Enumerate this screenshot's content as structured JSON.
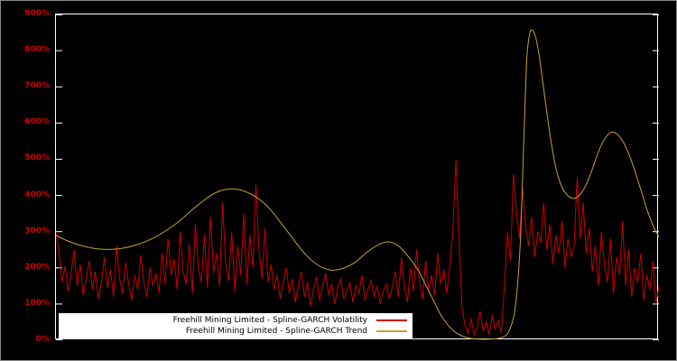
{
  "page": {
    "background": "#000000",
    "outer_border_color": "#8a8a8a"
  },
  "axis": {
    "tick_label_color": "#cc0000",
    "plot_border_color": "#ffffff",
    "tick_mark_color": "#ffffff"
  },
  "chart_data": {
    "type": "line",
    "title": "",
    "xlabel": "",
    "ylabel": "",
    "ylim": [
      0,
      900
    ],
    "y_tick_step": 100,
    "y_ticks": [
      "0%",
      "100%",
      "200%",
      "300%",
      "400%",
      "500%",
      "600%",
      "700%",
      "800%",
      "900%"
    ],
    "grid": false,
    "legend_position": "bottom-left-inside",
    "x_range": [
      0,
      1
    ],
    "series": [
      {
        "name": "Freehill Mining Limited - Spline-GARCH Volatility",
        "color": "#cc0000",
        "line_style": "jagged",
        "values": [
          300,
          240,
          160,
          205,
          135,
          185,
          250,
          150,
          210,
          125,
          170,
          220,
          140,
          190,
          115,
          160,
          230,
          145,
          195,
          120,
          260,
          170,
          130,
          215,
          155,
          110,
          180,
          140,
          235,
          160,
          120,
          200,
          150,
          185,
          130,
          240,
          155,
          280,
          180,
          225,
          140,
          300,
          190,
          155,
          265,
          130,
          320,
          200,
          160,
          290,
          145,
          340,
          185,
          240,
          150,
          380,
          210,
          165,
          300,
          135,
          260,
          180,
          350,
          155,
          290,
          200,
          430,
          250,
          170,
          310,
          160,
          210,
          140,
          180,
          115,
          160,
          200,
          130,
          170,
          105,
          150,
          190,
          120,
          160,
          95,
          140,
          175,
          110,
          150,
          185,
          125,
          155,
          100,
          145,
          170,
          115,
          135,
          160,
          105,
          150,
          130,
          180,
          110,
          140,
          165,
          120,
          150,
          100,
          135,
          155,
          115,
          145,
          190,
          120,
          230,
          150,
          105,
          200,
          135,
          250,
          160,
          115,
          220,
          140,
          180,
          125,
          240,
          155,
          195,
          130,
          210,
          300,
          500,
          280,
          90,
          40,
          20,
          60,
          15,
          35,
          80,
          25,
          50,
          15,
          70,
          30,
          55,
          20,
          150,
          300,
          220,
          460,
          350,
          280,
          420,
          310,
          260,
          340,
          230,
          300,
          270,
          380,
          250,
          320,
          210,
          290,
          240,
          330,
          200,
          280,
          230,
          260,
          450,
          280,
          380,
          240,
          310,
          190,
          260,
          150,
          300,
          210,
          160,
          280,
          130,
          230,
          180,
          330,
          150,
          250,
          120,
          200,
          160,
          240,
          110,
          180,
          140,
          220,
          100,
          150
        ]
      },
      {
        "name": "Freehill Mining Limited - Spline-GARCH Trend",
        "color": "#c8a032",
        "line_style": "smooth",
        "points": [
          [
            0.0,
            290
          ],
          [
            0.02,
            274
          ],
          [
            0.05,
            258
          ],
          [
            0.08,
            251
          ],
          [
            0.11,
            254
          ],
          [
            0.14,
            267
          ],
          [
            0.17,
            290
          ],
          [
            0.2,
            323
          ],
          [
            0.23,
            366
          ],
          [
            0.255,
            398
          ],
          [
            0.275,
            414
          ],
          [
            0.295,
            418
          ],
          [
            0.315,
            410
          ],
          [
            0.335,
            392
          ],
          [
            0.355,
            362
          ],
          [
            0.375,
            320
          ],
          [
            0.395,
            276
          ],
          [
            0.415,
            235
          ],
          [
            0.435,
            207
          ],
          [
            0.455,
            194
          ],
          [
            0.475,
            198
          ],
          [
            0.495,
            214
          ],
          [
            0.515,
            242
          ],
          [
            0.535,
            264
          ],
          [
            0.55,
            272
          ],
          [
            0.565,
            264
          ],
          [
            0.58,
            240
          ],
          [
            0.6,
            195
          ],
          [
            0.62,
            130
          ],
          [
            0.64,
            65
          ],
          [
            0.66,
            25
          ],
          [
            0.68,
            8
          ],
          [
            0.7,
            3
          ],
          [
            0.72,
            3
          ],
          [
            0.74,
            8
          ],
          [
            0.752,
            28
          ],
          [
            0.762,
            95
          ],
          [
            0.77,
            270
          ],
          [
            0.776,
            560
          ],
          [
            0.781,
            780
          ],
          [
            0.786,
            848
          ],
          [
            0.79,
            856
          ],
          [
            0.795,
            840
          ],
          [
            0.801,
            790
          ],
          [
            0.81,
            680
          ],
          [
            0.82,
            560
          ],
          [
            0.83,
            470
          ],
          [
            0.84,
            420
          ],
          [
            0.85,
            398
          ],
          [
            0.86,
            392
          ],
          [
            0.87,
            404
          ],
          [
            0.88,
            432
          ],
          [
            0.89,
            475
          ],
          [
            0.9,
            522
          ],
          [
            0.91,
            556
          ],
          [
            0.92,
            574
          ],
          [
            0.93,
            570
          ],
          [
            0.94,
            550
          ],
          [
            0.95,
            515
          ],
          [
            0.96,
            468
          ],
          [
            0.97,
            415
          ],
          [
            0.98,
            362
          ],
          [
            0.99,
            318
          ],
          [
            1.0,
            285
          ]
        ]
      }
    ]
  }
}
